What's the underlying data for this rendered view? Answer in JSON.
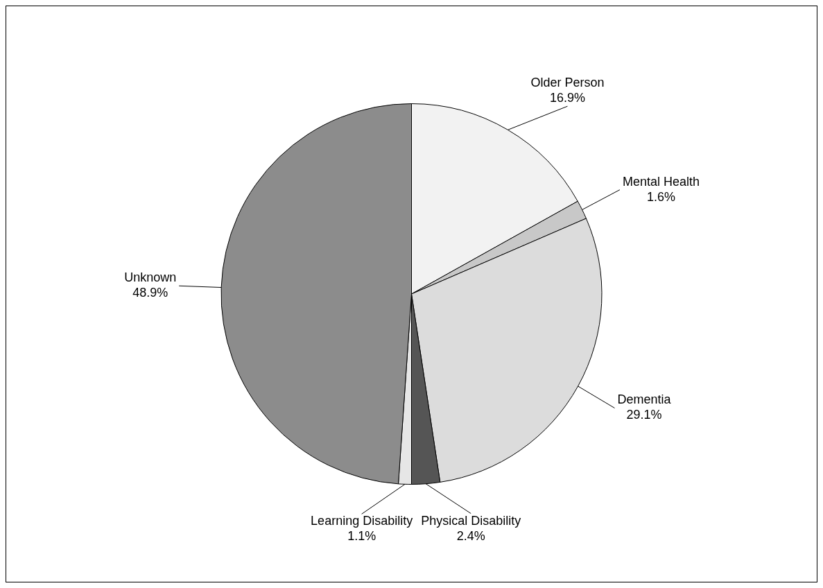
{
  "chart_data": {
    "type": "pie",
    "categories": [
      "Older Person",
      "Mental Health",
      "Dementia",
      "Physical Disability",
      "Learning Disability",
      "Unknown"
    ],
    "values": [
      16.9,
      1.6,
      29.1,
      2.4,
      1.1,
      48.9
    ],
    "value_labels": [
      "16.9%",
      "1.6%",
      "29.1%",
      "2.4%",
      "1.1%",
      "48.9%"
    ],
    "colors": [
      "#f2f2f2",
      "#c8c8c8",
      "#dcdcdc",
      "#555555",
      "#e6e6e6",
      "#8c8c8c"
    ],
    "legend": false
  }
}
